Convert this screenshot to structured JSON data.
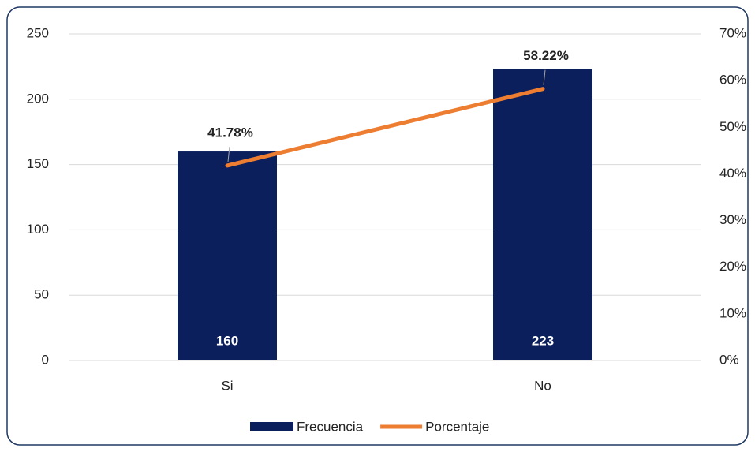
{
  "chart_data": {
    "type": "bar",
    "categories": [
      "Si",
      "No"
    ],
    "series": [
      {
        "name": "Frecuencia",
        "type": "bar",
        "color": "#0b1f5c",
        "values": [
          160,
          223
        ]
      },
      {
        "name": "Porcentaje",
        "type": "line",
        "axis": "y2",
        "color": "#ed7d31",
        "values": [
          41.78,
          58.22
        ],
        "value_labels": [
          "41.78%",
          "58.22%"
        ]
      }
    ],
    "ylim": [
      0,
      250
    ],
    "yticks": [
      0,
      50,
      100,
      150,
      200,
      250
    ],
    "y2lim": [
      0,
      70
    ],
    "y2ticks": [
      {
        "value": 0,
        "label": "0%"
      },
      {
        "value": 10,
        "label": "10%"
      },
      {
        "value": 20,
        "label": "20%"
      },
      {
        "value": 30,
        "label": "30%"
      },
      {
        "value": 40,
        "label": "40%"
      },
      {
        "value": 50,
        "label": "50%"
      },
      {
        "value": 60,
        "label": "60%"
      },
      {
        "value": 70,
        "label": "70%"
      }
    ],
    "grid": true,
    "legend": "bottom"
  }
}
